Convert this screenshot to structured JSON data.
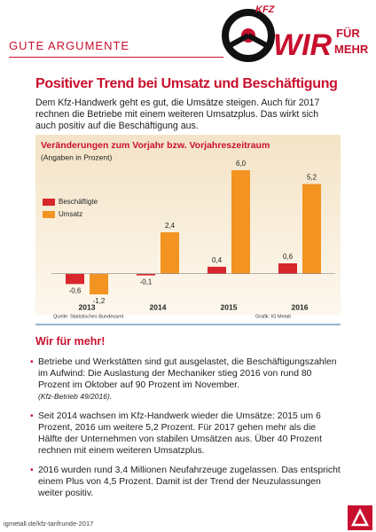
{
  "header": {
    "section": "GUTE ARGUMENTE",
    "logo_top": "KFZ",
    "logo_main": "WIR",
    "logo_sub1": "FÜR",
    "logo_sub2": "MEHR"
  },
  "title": "Positiver Trend bei Umsatz und Beschäftigung",
  "intro": "Dem Kfz-Handwerk geht es gut, die Umsätze steigen. Auch für 2017 rechnen die Betriebe mit einem weiteren Umsatzplus. Das wirkt sich auch positiv auf die Beschäftigung aus.",
  "chart_data": {
    "type": "bar",
    "title": "Veränderungen zum Vorjahr bzw. Vorjahreszeitraum",
    "subtitle": "(Angaben in Prozent)",
    "categories": [
      "2013",
      "2014",
      "2015",
      "2016"
    ],
    "series": [
      {
        "name": "Beschäftigte",
        "color": "#d7262c",
        "values": [
          -0.6,
          -0.1,
          0.4,
          0.6
        ],
        "value_labels": [
          "-0,6",
          "-0,1",
          "0,4",
          "0,6"
        ]
      },
      {
        "name": "Umsatz",
        "color": "#f39322",
        "values": [
          -1.2,
          2.4,
          6.0,
          5.2
        ],
        "value_labels": [
          "-1,2",
          "2,4",
          "6,0",
          "5,2"
        ]
      }
    ],
    "source": "Quelle: Statistisches Bundesamt",
    "credit": "Grafik: IG Metall"
  },
  "section2": {
    "heading": "Wir für mehr!",
    "bullets": [
      {
        "text": "Betriebe und Werkstätten sind gut ausgelastet, die Beschäftigungszahlen im Aufwind: Die Auslastung der Mechaniker stieg 2016 von rund 80 Prozent im Oktober auf 90 Prozent im November.",
        "note": "(Kfz-Betrieb 49/2016)."
      },
      {
        "text": "Seit 2014 wachsen im Kfz-Handwerk wieder die Umsätze: 2015 um 6 Prozent, 2016 um weitere 5,2 Prozent. Für 2017 gehen mehr als die Hälfte der Unternehmen von stabilen Umsätzen aus. Über 40 Prozent rechnen mit einem weiteren Umsatzplus."
      },
      {
        "text": "2016 wurden rund 3,4 Millionen Neufahrzeuge zugelassen. Das entspricht einem Plus von 4,5 Prozent. Damit ist der Trend der Neuzulassungen weiter positiv."
      }
    ]
  },
  "footer": {
    "url": "igmetall.de/kfz-tarifrunde-2017"
  }
}
